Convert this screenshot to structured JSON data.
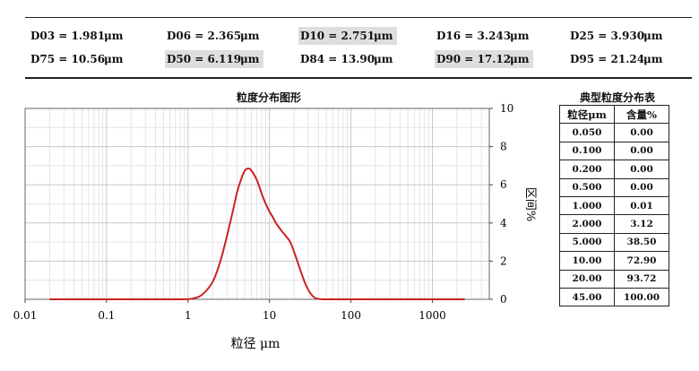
{
  "d_values": [
    {
      "label": "D03 = 1.981",
      "unit": "μm",
      "highlight": false
    },
    {
      "label": "D06 = 2.365",
      "unit": "μm",
      "highlight": false
    },
    {
      "label": "D10 = 2.751",
      "unit": "μm",
      "highlight": true
    },
    {
      "label": "D16 = 3.243",
      "unit": "μm",
      "highlight": false
    },
    {
      "label": "D25 = 3.930",
      "unit": "μm",
      "highlight": false
    },
    {
      "label": "D75 = 10.56",
      "unit": "μm",
      "highlight": false
    },
    {
      "label": "D50 = 6.119",
      "unit": "μm",
      "highlight": true
    },
    {
      "label": "D84 = 13.90",
      "unit": "μm",
      "highlight": false
    },
    {
      "label": "D90 = 17.12",
      "unit": "μm",
      "highlight": true
    },
    {
      "label": "D95 = 21.24",
      "unit": "μm",
      "highlight": false
    }
  ],
  "chart_data": {
    "type": "line",
    "title": "粒度分布图形",
    "xlabel": "粒径 μm",
    "ylabel": "区间%",
    "x_scale": "log",
    "xlim": [
      0.01,
      5000
    ],
    "ylim": [
      0,
      10
    ],
    "x_tick_labels": [
      "0.01",
      "0.1",
      "1",
      "10",
      "100",
      "1000"
    ],
    "y_tick_labels": [
      "0",
      "2",
      "4",
      "6",
      "8",
      "10"
    ],
    "grid": true,
    "line_color": "#cc2222",
    "series": [
      {
        "x": [
          0.02,
          0.1,
          0.5,
          0.8,
          1.0,
          1.2,
          1.5,
          2.0,
          2.5,
          3.0,
          3.5,
          4.0,
          4.5,
          5.0,
          5.5,
          6.0,
          7.0,
          8.0,
          9.0,
          10.0,
          11.0,
          12.0,
          14.0,
          16.0,
          18.0,
          20.0,
          22.0,
          25.0,
          28.0,
          32.0,
          36.0,
          40.0,
          45.0,
          60.0,
          100.0,
          1000.0,
          2500.0
        ],
        "y": [
          0,
          0,
          0,
          0,
          0.01,
          0.06,
          0.25,
          0.9,
          2.0,
          3.3,
          4.5,
          5.6,
          6.3,
          6.75,
          6.85,
          6.75,
          6.25,
          5.55,
          5.0,
          4.6,
          4.3,
          4.0,
          3.6,
          3.3,
          3.0,
          2.5,
          2.0,
          1.3,
          0.75,
          0.3,
          0.08,
          0.02,
          0,
          0,
          0,
          0,
          0
        ]
      }
    ]
  },
  "table": {
    "title": "典型粒度分布表",
    "headers": [
      "粒径μm",
      "含量%"
    ],
    "rows": [
      [
        "0.050",
        "0.00"
      ],
      [
        "0.100",
        "0.00"
      ],
      [
        "0.200",
        "0.00"
      ],
      [
        "0.500",
        "0.00"
      ],
      [
        "1.000",
        "0.01"
      ],
      [
        "2.000",
        "3.12"
      ],
      [
        "5.000",
        "38.50"
      ],
      [
        "10.00",
        "72.90"
      ],
      [
        "20.00",
        "93.72"
      ],
      [
        "45.00",
        "100.00"
      ]
    ]
  }
}
